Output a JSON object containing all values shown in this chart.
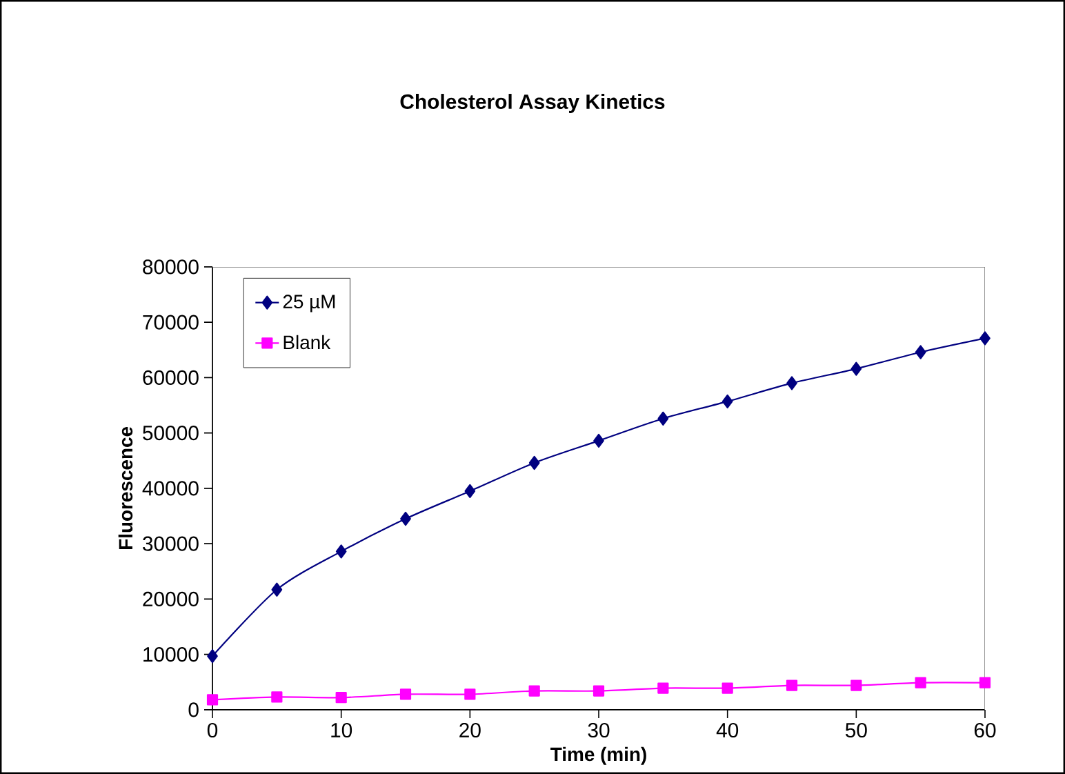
{
  "chart_data": {
    "type": "line",
    "title": "Cholesterol Assay Kinetics",
    "xlabel": "Time (min)",
    "ylabel": "Fluorescence",
    "x": [
      0,
      5,
      10,
      15,
      20,
      25,
      30,
      35,
      40,
      45,
      50,
      55,
      60
    ],
    "series": [
      {
        "name": "25 µM",
        "color": "#000080",
        "marker": "diamond",
        "values": [
          9700,
          21700,
          28600,
          34500,
          39500,
          44600,
          48600,
          52600,
          55700,
          59000,
          61600,
          64600,
          67100
        ]
      },
      {
        "name": "Blank",
        "color": "#ff00ff",
        "marker": "square",
        "values": [
          1800,
          2300,
          2200,
          2800,
          2800,
          3400,
          3400,
          3900,
          3900,
          4400,
          4400,
          4900,
          4900
        ]
      }
    ],
    "xlim": [
      0,
      60
    ],
    "xticks": [
      0,
      10,
      20,
      30,
      40,
      50,
      60
    ],
    "ylim": [
      0,
      80000
    ],
    "yticks": [
      0,
      10000,
      20000,
      30000,
      40000,
      50000,
      60000,
      70000,
      80000
    ],
    "grid": false,
    "legend": "top left"
  }
}
